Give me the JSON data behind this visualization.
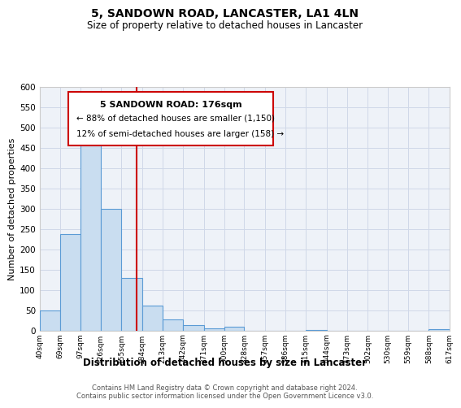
{
  "title": "5, SANDOWN ROAD, LANCASTER, LA1 4LN",
  "subtitle": "Size of property relative to detached houses in Lancaster",
  "xlabel": "Distribution of detached houses by size in Lancaster",
  "ylabel": "Number of detached properties",
  "bar_color": "#c9ddf0",
  "bar_edge_color": "#5b9bd5",
  "background_color": "#ffffff",
  "plot_background": "#eef2f8",
  "grid_color": "#d0d8e8",
  "bin_edges": [
    40,
    69,
    97,
    126,
    155,
    184,
    213,
    242,
    271,
    300,
    328,
    357,
    386,
    415,
    444,
    473,
    502,
    530,
    559,
    588,
    617
  ],
  "bin_labels": [
    "40sqm",
    "69sqm",
    "97sqm",
    "126sqm",
    "155sqm",
    "184sqm",
    "213sqm",
    "242sqm",
    "271sqm",
    "300sqm",
    "328sqm",
    "357sqm",
    "386sqm",
    "415sqm",
    "444sqm",
    "473sqm",
    "502sqm",
    "530sqm",
    "559sqm",
    "588sqm",
    "617sqm"
  ],
  "counts": [
    50,
    238,
    472,
    300,
    130,
    62,
    29,
    15,
    7,
    10,
    0,
    0,
    0,
    3,
    0,
    0,
    0,
    0,
    0,
    5
  ],
  "property_size": 176,
  "vline_color": "#cc0000",
  "annotation_line1": "5 SANDOWN ROAD: 176sqm",
  "annotation_line2": "← 88% of detached houses are smaller (1,150)",
  "annotation_line3": "12% of semi-detached houses are larger (158) →",
  "annotation_box_color": "#ffffff",
  "annotation_box_edge": "#cc0000",
  "ylim": [
    0,
    600
  ],
  "yticks": [
    0,
    50,
    100,
    150,
    200,
    250,
    300,
    350,
    400,
    450,
    500,
    550,
    600
  ],
  "footer_line1": "Contains HM Land Registry data © Crown copyright and database right 2024.",
  "footer_line2": "Contains public sector information licensed under the Open Government Licence v3.0."
}
